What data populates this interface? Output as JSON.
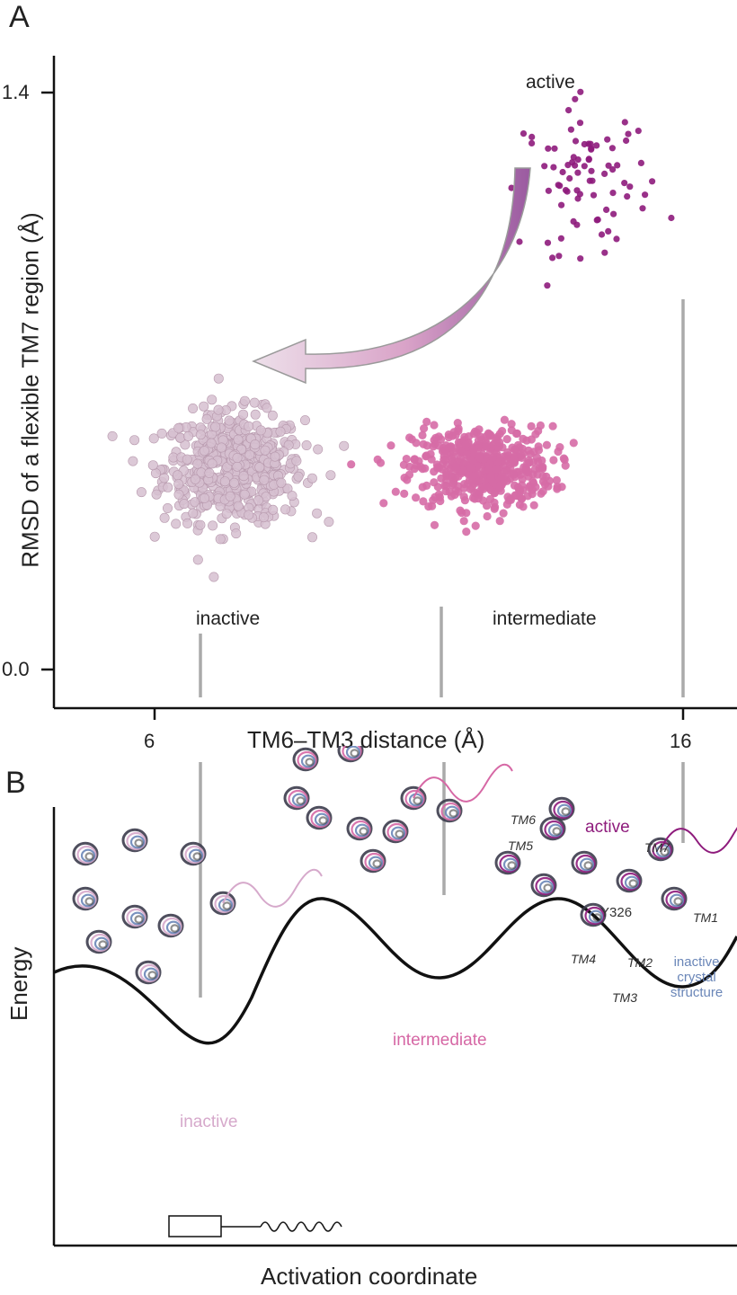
{
  "panel_a": {
    "letter": "A",
    "chart_data": {
      "type": "scatter",
      "xlabel": "TM6–TM3 distance (Å)",
      "ylabel": "RMSD of a flexible TM7 region (Å)",
      "x_ticks": [
        "6",
        "16"
      ],
      "y_ticks": [
        "1.4",
        "0.0"
      ],
      "xlim": [
        4.2,
        17.0
      ],
      "ylim": [
        -0.07,
        1.57
      ],
      "annotations": [
        "active",
        "inactive",
        "intermediate"
      ],
      "series": [
        {
          "color": "#d6bfd0",
          "center": [
            7.5,
            0.49
          ],
          "spread": [
            1.2,
            0.12
          ],
          "count": 560
        },
        {
          "color": "#d66ba6",
          "center": [
            12.2,
            0.49
          ],
          "spread": [
            1.2,
            0.09
          ],
          "count": 520
        },
        {
          "color": "#8e1b7c",
          "center": [
            14.2,
            1.19
          ],
          "spread": [
            1.1,
            0.16
          ],
          "count": 80
        }
      ]
    }
  },
  "panel_b": {
    "letter": "B",
    "ylabel": "Energy",
    "xlabel": "Activation coordinate",
    "state_labels": {
      "inactive": "inactive",
      "intermediate": "intermediate",
      "active": "active"
    },
    "crystal_label_lines": [
      "inactive",
      "crystal",
      "structure"
    ],
    "residue_label": "Y326",
    "helix_labels": {
      "tm6": "TM6",
      "tm5": "TM5",
      "tm7": "TM7",
      "tm1": "TM1",
      "tm4": "TM4",
      "tm2": "TM2",
      "tm3": "TM3"
    },
    "colors": {
      "inactive": "#d6a9cb",
      "intermediate": "#d668a5",
      "active": "#8e1b7c",
      "crystal": "#6a86b8",
      "curve": "#111111",
      "guide": "#aaaaaa"
    }
  }
}
